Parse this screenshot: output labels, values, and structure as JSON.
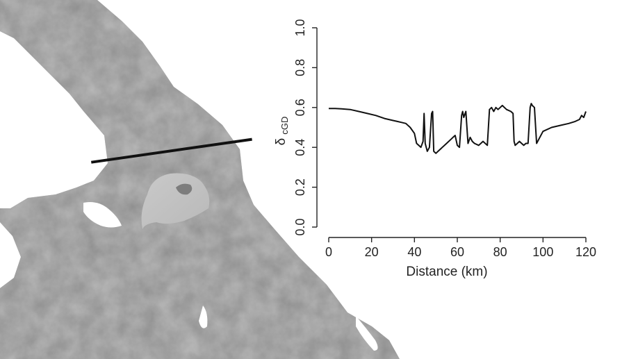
{
  "chart_data": {
    "type": "line",
    "xlabel": "Distance (km)",
    "ylabel_main": "δ",
    "ylabel_sub": "cGD",
    "xlim": [
      0,
      120
    ],
    "ylim": [
      0,
      1
    ],
    "xticks": [
      0,
      20,
      40,
      60,
      80,
      100,
      120
    ],
    "yticks": [
      "0.0",
      "0.2",
      "0.4",
      "0.6",
      "0.8",
      "1.0"
    ],
    "grid": false,
    "series": [
      {
        "x": [
          0,
          3,
          6,
          10,
          14,
          18,
          22,
          26,
          30,
          32,
          34,
          36,
          38,
          40,
          41,
          42,
          43,
          44,
          44.5,
          45,
          46,
          47,
          48,
          48.5,
          49,
          50,
          51,
          53,
          55,
          57,
          58,
          59,
          60,
          61,
          62,
          62.5,
          63,
          64,
          65,
          66,
          67,
          68,
          70,
          72,
          74,
          75,
          76,
          77,
          78,
          79,
          80,
          81,
          82,
          83,
          85,
          86,
          86.5,
          87,
          88,
          89,
          90,
          91,
          92,
          93,
          94,
          94.5,
          95,
          96,
          97,
          98,
          100,
          104,
          108,
          112,
          115,
          117,
          118,
          119,
          120
        ],
        "y": [
          0.595,
          0.595,
          0.593,
          0.59,
          0.58,
          0.57,
          0.56,
          0.545,
          0.535,
          0.53,
          0.525,
          0.52,
          0.5,
          0.47,
          0.42,
          0.41,
          0.4,
          0.43,
          0.57,
          0.42,
          0.38,
          0.4,
          0.57,
          0.58,
          0.38,
          0.37,
          0.38,
          0.4,
          0.42,
          0.44,
          0.45,
          0.46,
          0.41,
          0.4,
          0.56,
          0.58,
          0.55,
          0.58,
          0.42,
          0.45,
          0.43,
          0.42,
          0.41,
          0.43,
          0.41,
          0.59,
          0.6,
          0.58,
          0.6,
          0.59,
          0.6,
          0.61,
          0.6,
          0.59,
          0.58,
          0.57,
          0.43,
          0.41,
          0.42,
          0.43,
          0.42,
          0.41,
          0.42,
          0.42,
          0.6,
          0.62,
          0.61,
          0.6,
          0.42,
          0.44,
          0.48,
          0.5,
          0.51,
          0.52,
          0.53,
          0.54,
          0.56,
          0.55,
          0.58
        ]
      }
    ]
  },
  "map": {
    "transect_start": [
      0.143,
      0.452
    ],
    "transect_end": [
      0.395,
      0.388
    ]
  }
}
